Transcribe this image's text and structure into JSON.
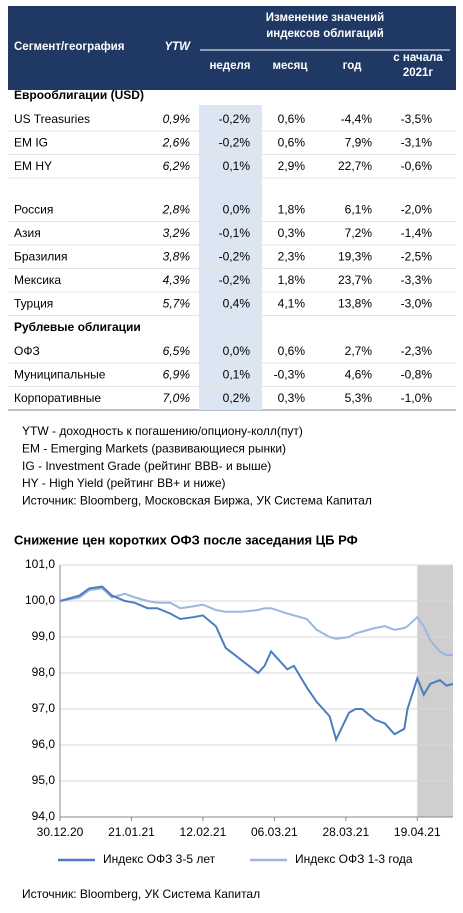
{
  "table": {
    "header": {
      "segment": "Сегмент/география",
      "ytw": "YTW",
      "group": [
        "Изменение значений",
        "индексов облигаций"
      ],
      "columns": [
        "неделя",
        "месяц",
        "год",
        [
          "с начала",
          "2021г"
        ]
      ]
    },
    "groups": [
      {
        "title": "Еврооблигации (USD)",
        "rows": [
          [
            "US Treasuries",
            "0,9%",
            "-0,2%",
            "0,6%",
            "-4,4%",
            "-3,5%"
          ],
          [
            "EM IG",
            "2,6%",
            "-0,2%",
            "0,6%",
            "7,9%",
            "-3,1%"
          ],
          [
            "EM HY",
            "6,2%",
            "0,1%",
            "2,9%",
            "22,7%",
            "-0,6%"
          ]
        ]
      },
      {
        "rows": [
          [
            "Россия",
            "2,8%",
            "0,0%",
            "1,8%",
            "6,1%",
            "-2,0%"
          ],
          [
            "Азия",
            "3,2%",
            "-0,1%",
            "0,3%",
            "7,2%",
            "-1,4%"
          ],
          [
            "Бразилия",
            "3,8%",
            "-0,2%",
            "2,3%",
            "19,3%",
            "-2,5%"
          ],
          [
            "Мексика",
            "4,3%",
            "-0,2%",
            "1,8%",
            "23,7%",
            "-3,3%"
          ],
          [
            "Турция",
            "5,7%",
            "0,4%",
            "4,1%",
            "13,8%",
            "-3,0%"
          ]
        ]
      },
      {
        "title": "Рублевые облигации",
        "rows": [
          [
            "ОФЗ",
            "6,5%",
            "0,0%",
            "0,6%",
            "2,7%",
            "-2,3%"
          ],
          [
            "Муниципальные",
            "6,9%",
            "0,1%",
            "-0,3%",
            "4,6%",
            "-0,8%"
          ],
          [
            "Корпоративные",
            "7,0%",
            "0,2%",
            "0,3%",
            "5,3%",
            "-1,0%"
          ]
        ]
      }
    ]
  },
  "notes": [
    "YTW - доходность к погашению/опциону-колл(пут)",
    "EM - Emerging Markets (развивающиеся рынки)",
    "IG - Investment Grade (рейтинг BBB- и выше)",
    "HY - High Yield (рейтинг BB+ и ниже)",
    "Источник: Bloomberg, Московская Биржа, УК Система Капитал"
  ],
  "chart_data": {
    "type": "line",
    "title": "Снижение цен коротких ОФЗ после заседания ЦБ РФ",
    "x": [
      "30.12.20",
      "05.01.21",
      "08.01.21",
      "12.01.21",
      "15.01.21",
      "19.01.21",
      "22.01.21",
      "26.01.21",
      "29.01.21",
      "02.02.21",
      "05.02.21",
      "09.02.21",
      "12.02.21",
      "16.02.21",
      "19.02.21",
      "24.02.21",
      "01.03.21",
      "03.03.21",
      "05.03.21",
      "10.03.21",
      "12.03.21",
      "16.03.21",
      "19.03.21",
      "23.03.21",
      "25.03.21",
      "29.03.21",
      "31.03.21",
      "02.04.21",
      "06.04.21",
      "09.04.21",
      "12.04.21",
      "15.04.21",
      "16.04.21",
      "19.04.21",
      "21.04.21",
      "23.04.21",
      "26.04.21",
      "28.04.21",
      "30.04.21"
    ],
    "series": [
      {
        "name": "Индекс ОФЗ 3-5 лет",
        "color": "#4a7ebf",
        "values": [
          100.0,
          100.15,
          100.35,
          100.4,
          100.15,
          100.0,
          99.95,
          99.8,
          99.8,
          99.65,
          99.5,
          99.55,
          99.6,
          99.3,
          98.7,
          98.35,
          98.0,
          98.2,
          98.6,
          98.1,
          98.2,
          97.6,
          97.2,
          96.8,
          96.15,
          96.9,
          97.0,
          97.0,
          96.7,
          96.6,
          96.3,
          96.45,
          97.0,
          97.85,
          97.4,
          97.7,
          97.8,
          97.65,
          97.7
        ]
      },
      {
        "name": "Индекс ОФЗ 1-3 года",
        "color": "#9cb6e0",
        "values": [
          100.0,
          100.1,
          100.3,
          100.35,
          100.1,
          100.2,
          100.1,
          100.0,
          99.95,
          99.95,
          99.8,
          99.85,
          99.9,
          99.75,
          99.7,
          99.7,
          99.75,
          99.8,
          99.8,
          99.65,
          99.6,
          99.5,
          99.2,
          99.0,
          98.95,
          99.0,
          99.1,
          99.15,
          99.25,
          99.3,
          99.2,
          99.25,
          99.3,
          99.55,
          99.3,
          98.9,
          98.6,
          98.5,
          98.5
        ]
      }
    ],
    "xlim": [
      "30.12.20",
      "30.04.21"
    ],
    "xticks": [
      "30.12.20",
      "21.01.21",
      "12.02.21",
      "06.03.21",
      "28.03.21",
      "19.04.21"
    ],
    "shaded_range": [
      "19.04.21",
      "30.04.21"
    ],
    "ylim": [
      94,
      101
    ],
    "yticks": [
      {
        "value": 94,
        "label": "94,0"
      },
      {
        "value": 95,
        "label": "95,0"
      },
      {
        "value": 96,
        "label": "96,0"
      },
      {
        "value": 97,
        "label": "97,0"
      },
      {
        "value": 98,
        "label": "98,0"
      },
      {
        "value": 99,
        "label": "99,0"
      },
      {
        "value": 100,
        "label": "100,0"
      },
      {
        "value": 101,
        "label": "101,0"
      }
    ],
    "grid": true,
    "legend": "bottom"
  },
  "source": "Источник: Bloomberg, УК Система Капитал"
}
